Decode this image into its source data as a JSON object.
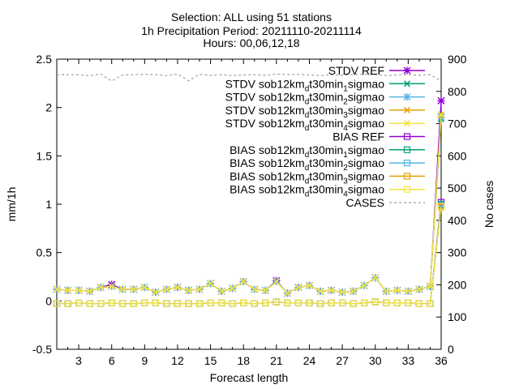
{
  "chart_data": {
    "type": "line",
    "title_lines": [
      "Selection: ALL using    51 stations",
      "1h Precipitation   Period: 20211110-20211114",
      "Hours: 00,06,12,18"
    ],
    "xlabel": "Forecast length",
    "ylabel": "mm/1h",
    "y2label": "No cases",
    "xlim": [
      1,
      36
    ],
    "ylim": [
      -0.5,
      2.5
    ],
    "y2lim": [
      0,
      900
    ],
    "xticks": [
      3,
      6,
      9,
      12,
      15,
      18,
      21,
      24,
      27,
      30,
      33,
      36
    ],
    "yticks": [
      -0.5,
      0,
      0.5,
      1,
      1.5,
      2,
      2.5
    ],
    "yticklabels": [
      "-0.5",
      "0",
      "0.5",
      "1",
      "1.5",
      "2",
      "2.5"
    ],
    "y2ticks": [
      0,
      100,
      200,
      300,
      400,
      500,
      600,
      700,
      800,
      900
    ],
    "grid": false,
    "legend_position": "top-right",
    "x": [
      1,
      2,
      3,
      4,
      5,
      6,
      7,
      8,
      9,
      10,
      11,
      12,
      13,
      14,
      15,
      16,
      17,
      18,
      19,
      20,
      21,
      22,
      23,
      24,
      25,
      26,
      27,
      28,
      29,
      30,
      31,
      32,
      33,
      34,
      35,
      36
    ],
    "series": [
      {
        "name": "STDV REF",
        "legend": {
          "pre": "STDV REF",
          "sub": "",
          "mid": "",
          "sub2": "",
          "post": ""
        },
        "color": "#9400d3",
        "marker": "star",
        "axis": "y",
        "values": [
          0.12,
          0.11,
          0.11,
          0.1,
          0.14,
          0.17,
          0.12,
          0.12,
          0.14,
          0.09,
          0.12,
          0.14,
          0.11,
          0.12,
          0.18,
          0.1,
          0.13,
          0.2,
          0.12,
          0.11,
          0.21,
          0.08,
          0.14,
          0.16,
          0.1,
          0.11,
          0.09,
          0.1,
          0.16,
          0.24,
          0.1,
          0.11,
          0.1,
          0.12,
          0.15,
          2.07
        ]
      },
      {
        "name": "STDV sob12km_dt30min_1sigmao",
        "legend": {
          "pre": "STDV sob12km",
          "sub": "d",
          "mid": "t30min",
          "sub2": "1",
          "post": "sigmao"
        },
        "color": "#009e73",
        "marker": "x",
        "axis": "y",
        "values": [
          0.12,
          0.11,
          0.11,
          0.1,
          0.14,
          0.15,
          0.12,
          0.12,
          0.14,
          0.09,
          0.12,
          0.14,
          0.11,
          0.12,
          0.18,
          0.1,
          0.13,
          0.2,
          0.12,
          0.11,
          0.2,
          0.08,
          0.14,
          0.16,
          0.1,
          0.11,
          0.09,
          0.1,
          0.16,
          0.24,
          0.1,
          0.11,
          0.1,
          0.12,
          0.15,
          1.88
        ]
      },
      {
        "name": "STDV sob12km_dt30min_2sigmao",
        "legend": {
          "pre": "STDV sob12km",
          "sub": "d",
          "mid": "t30min",
          "sub2": "2",
          "post": "sigmao"
        },
        "color": "#56b4e9",
        "marker": "star",
        "axis": "y",
        "values": [
          0.12,
          0.11,
          0.11,
          0.1,
          0.14,
          0.15,
          0.12,
          0.12,
          0.14,
          0.09,
          0.12,
          0.14,
          0.11,
          0.12,
          0.18,
          0.1,
          0.13,
          0.2,
          0.12,
          0.11,
          0.2,
          0.08,
          0.14,
          0.16,
          0.1,
          0.11,
          0.09,
          0.1,
          0.16,
          0.24,
          0.1,
          0.11,
          0.1,
          0.12,
          0.15,
          1.9
        ]
      },
      {
        "name": "STDV sob12km_dt30min_3sigmao",
        "legend": {
          "pre": "STDV sob12km",
          "sub": "d",
          "mid": "t30min",
          "sub2": "3",
          "post": "sigmao"
        },
        "color": "#e69f00",
        "marker": "x",
        "axis": "y",
        "values": [
          0.12,
          0.11,
          0.11,
          0.1,
          0.14,
          0.15,
          0.12,
          0.12,
          0.14,
          0.09,
          0.12,
          0.14,
          0.11,
          0.12,
          0.18,
          0.1,
          0.13,
          0.2,
          0.12,
          0.11,
          0.2,
          0.08,
          0.14,
          0.16,
          0.1,
          0.11,
          0.09,
          0.1,
          0.16,
          0.24,
          0.1,
          0.11,
          0.1,
          0.12,
          0.15,
          1.92
        ]
      },
      {
        "name": "STDV sob12km_dt30min_4sigmao",
        "legend": {
          "pre": "STDV sob12km",
          "sub": "d",
          "mid": "t30min",
          "sub2": "4",
          "post": "sigmao"
        },
        "color": "#f0e442",
        "marker": "x",
        "axis": "y",
        "values": [
          0.12,
          0.11,
          0.11,
          0.1,
          0.14,
          0.15,
          0.12,
          0.12,
          0.14,
          0.09,
          0.12,
          0.14,
          0.11,
          0.12,
          0.18,
          0.1,
          0.13,
          0.2,
          0.12,
          0.11,
          0.2,
          0.08,
          0.14,
          0.16,
          0.1,
          0.11,
          0.09,
          0.1,
          0.16,
          0.24,
          0.1,
          0.11,
          0.1,
          0.12,
          0.15,
          1.93
        ]
      },
      {
        "name": "BIAS REF",
        "legend": {
          "pre": "BIAS REF",
          "sub": "",
          "mid": "",
          "sub2": "",
          "post": ""
        },
        "color": "#9400d3",
        "marker": "square",
        "axis": "y",
        "values": [
          -0.03,
          -0.03,
          -0.02,
          -0.03,
          -0.03,
          -0.02,
          -0.03,
          -0.03,
          -0.02,
          -0.02,
          -0.03,
          -0.03,
          -0.03,
          -0.03,
          -0.02,
          -0.02,
          -0.03,
          -0.02,
          -0.03,
          -0.02,
          -0.01,
          -0.02,
          -0.02,
          -0.02,
          -0.03,
          -0.02,
          -0.02,
          -0.03,
          -0.02,
          -0.01,
          -0.02,
          -0.02,
          -0.02,
          -0.03,
          -0.03,
          1.02
        ]
      },
      {
        "name": "BIAS sob12km_dt30min_1sigmao",
        "legend": {
          "pre": "BIAS sob12km",
          "sub": "d",
          "mid": "t30min",
          "sub2": "1",
          "post": "sigmao"
        },
        "color": "#009e73",
        "marker": "square",
        "axis": "y",
        "values": [
          -0.03,
          -0.03,
          -0.02,
          -0.03,
          -0.03,
          -0.02,
          -0.03,
          -0.03,
          -0.02,
          -0.02,
          -0.03,
          -0.03,
          -0.03,
          -0.03,
          -0.02,
          -0.02,
          -0.03,
          -0.02,
          -0.03,
          -0.02,
          -0.01,
          -0.02,
          -0.02,
          -0.02,
          -0.03,
          -0.02,
          -0.02,
          -0.03,
          -0.02,
          -0.01,
          -0.02,
          -0.02,
          -0.02,
          -0.03,
          -0.03,
          1.0
        ]
      },
      {
        "name": "BIAS sob12km_dt30min_2sigmao",
        "legend": {
          "pre": "BIAS sob12km",
          "sub": "d",
          "mid": "t30min",
          "sub2": "2",
          "post": "sigmao"
        },
        "color": "#56b4e9",
        "marker": "square",
        "axis": "y",
        "values": [
          -0.03,
          -0.03,
          -0.02,
          -0.03,
          -0.03,
          -0.02,
          -0.03,
          -0.03,
          -0.02,
          -0.02,
          -0.03,
          -0.03,
          -0.03,
          -0.03,
          -0.02,
          -0.02,
          -0.03,
          -0.02,
          -0.03,
          -0.02,
          -0.01,
          -0.02,
          -0.02,
          -0.02,
          -0.03,
          -0.02,
          -0.02,
          -0.03,
          -0.02,
          -0.01,
          -0.02,
          -0.02,
          -0.02,
          -0.03,
          -0.03,
          0.99
        ]
      },
      {
        "name": "BIAS sob12km_dt30min_3sigmao",
        "legend": {
          "pre": "BIAS sob12km",
          "sub": "d",
          "mid": "t30min",
          "sub2": "3",
          "post": "sigmao"
        },
        "color": "#e69f00",
        "marker": "square",
        "axis": "y",
        "values": [
          -0.03,
          -0.03,
          -0.02,
          -0.03,
          -0.03,
          -0.02,
          -0.03,
          -0.03,
          -0.02,
          -0.02,
          -0.03,
          -0.03,
          -0.03,
          -0.03,
          -0.02,
          -0.02,
          -0.03,
          -0.02,
          -0.03,
          -0.02,
          -0.01,
          -0.02,
          -0.02,
          -0.02,
          -0.03,
          -0.02,
          -0.02,
          -0.03,
          -0.02,
          -0.01,
          -0.02,
          -0.02,
          -0.02,
          -0.03,
          -0.03,
          0.98
        ]
      },
      {
        "name": "BIAS sob12km_dt30min_4sigmao",
        "legend": {
          "pre": "BIAS sob12km",
          "sub": "d",
          "mid": "t30min",
          "sub2": "4",
          "post": "sigmao"
        },
        "color": "#f0e442",
        "marker": "square",
        "axis": "y",
        "values": [
          -0.03,
          -0.03,
          -0.02,
          -0.03,
          -0.03,
          -0.02,
          -0.03,
          -0.03,
          -0.02,
          -0.02,
          -0.03,
          -0.03,
          -0.03,
          -0.03,
          -0.02,
          -0.02,
          -0.03,
          -0.02,
          -0.03,
          -0.02,
          -0.01,
          -0.02,
          -0.02,
          -0.02,
          -0.03,
          -0.02,
          -0.02,
          -0.03,
          -0.02,
          -0.01,
          -0.02,
          -0.02,
          -0.02,
          -0.03,
          -0.03,
          0.97
        ]
      },
      {
        "name": "CASES",
        "legend": {
          "pre": "CASES",
          "sub": "",
          "mid": "",
          "sub2": "",
          "post": ""
        },
        "color": "#a0a0a0",
        "marker": "none",
        "dash": true,
        "axis": "y2",
        "values": [
          852,
          852,
          851,
          849,
          854,
          832,
          851,
          852,
          853,
          852,
          849,
          854,
          833,
          853,
          850,
          852,
          849,
          851,
          852,
          850,
          854,
          852,
          853,
          851,
          849,
          852,
          850,
          852,
          853,
          852,
          849,
          851,
          852,
          850,
          852,
          832
        ]
      }
    ]
  }
}
